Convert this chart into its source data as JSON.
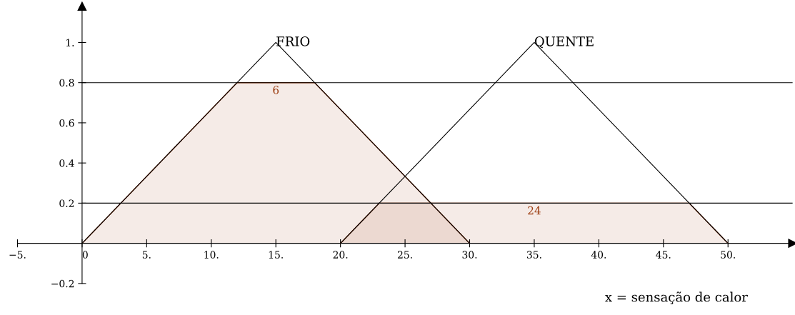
{
  "chart_data": {
    "type": "line",
    "xlabel": "x = sensação de calor",
    "xlim": [
      -5,
      55
    ],
    "ylim": [
      -0.2,
      1.18
    ],
    "xticks": [
      {
        "value": -5,
        "label": "−5."
      },
      {
        "value": 0,
        "label": "0"
      },
      {
        "value": 5,
        "label": "5."
      },
      {
        "value": 10,
        "label": "10."
      },
      {
        "value": 15,
        "label": "15."
      },
      {
        "value": 20,
        "label": "20."
      },
      {
        "value": 25,
        "label": "25."
      },
      {
        "value": 30,
        "label": "30."
      },
      {
        "value": 35,
        "label": "35."
      },
      {
        "value": 40,
        "label": "40."
      },
      {
        "value": 45,
        "label": "45."
      },
      {
        "value": 50,
        "label": "50."
      }
    ],
    "yticks": [
      {
        "value": -0.2,
        "label": "−0.2"
      },
      0.2,
      0.4,
      0.6,
      0.8,
      {
        "value": 1,
        "label": "1."
      }
    ],
    "grid": false,
    "legend": false,
    "marker": "none",
    "line_style": "solid",
    "series": [
      {
        "type": "area",
        "color": "#9c3c10",
        "x": [
          0,
          12,
          18,
          30
        ],
        "values": [
          0,
          0.8,
          0.8,
          0
        ]
      },
      {
        "type": "area",
        "color": "#9c3c10",
        "x": [
          20,
          23,
          47,
          50
        ],
        "values": [
          0,
          0.2,
          0.2,
          0
        ]
      },
      {
        "name": "FRIO",
        "color": "#000000",
        "x": [
          0,
          15,
          30
        ],
        "values": [
          0,
          1,
          0
        ]
      },
      {
        "name": "QUENTE",
        "color": "#000000",
        "x": [
          20,
          35,
          50
        ],
        "values": [
          0,
          1,
          0
        ]
      }
    ],
    "ref_lines": [
      {
        "axis": "y",
        "value": 0.8,
        "color": "#000000"
      },
      {
        "axis": "y",
        "value": 0.2,
        "color": "#000000"
      }
    ],
    "annotations": [
      {
        "text": "6",
        "x": 15,
        "y": 0.8
      },
      {
        "text": "24",
        "x": 35,
        "y": 0.2
      }
    ]
  }
}
